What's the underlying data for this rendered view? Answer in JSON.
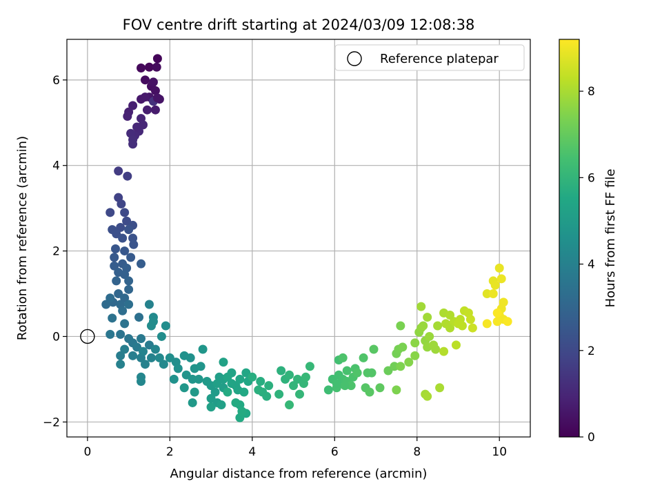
{
  "chart_data": {
    "type": "scatter",
    "title": "FOV centre drift starting at 2024/03/09 12:08:38",
    "xlabel": "Angular distance from reference (arcmin)",
    "ylabel": "Rotation from reference (arcmin)",
    "xlim": [
      -0.5,
      10.75
    ],
    "ylim": [
      -2.35,
      6.95
    ],
    "xticks": [
      0,
      2,
      4,
      6,
      8,
      10
    ],
    "yticks": [
      -2,
      0,
      2,
      4,
      6
    ],
    "grid": true,
    "legend": {
      "placement": "top-right",
      "entries": [
        "Reference platepar"
      ]
    },
    "reference_point": {
      "label": "Reference platepar",
      "x": 0,
      "y": 0
    },
    "colorbar": {
      "label": "Hours from first FF file",
      "colormap": "viridis",
      "range": [
        0,
        9.2
      ],
      "ticks": [
        0,
        2,
        4,
        6,
        8
      ]
    },
    "colormap_stops": [
      "#440154",
      "#482475",
      "#414487",
      "#355f8d",
      "#2a788e",
      "#21918c",
      "#22a884",
      "#44bf70",
      "#7ad151",
      "#bddf26",
      "#fde725"
    ],
    "series": [
      {
        "points": [
          [
            1.7,
            6.5,
            0.1
          ],
          [
            1.5,
            6.3,
            0.15
          ],
          [
            1.3,
            6.28,
            0.2
          ],
          [
            1.68,
            6.3,
            0.25
          ],
          [
            1.4,
            6.0,
            0.3
          ],
          [
            1.55,
            5.85,
            0.35
          ],
          [
            1.65,
            5.75,
            0.4
          ],
          [
            1.6,
            5.95,
            0.45
          ],
          [
            1.75,
            5.55,
            0.5
          ],
          [
            1.5,
            5.6,
            0.55
          ],
          [
            1.3,
            5.55,
            0.6
          ],
          [
            1.4,
            5.6,
            0.65
          ],
          [
            1.65,
            5.3,
            0.7
          ],
          [
            1.45,
            5.3,
            0.75
          ],
          [
            1.1,
            5.4,
            0.8
          ],
          [
            1.0,
            5.25,
            0.85
          ],
          [
            0.97,
            5.15,
            0.9
          ],
          [
            1.3,
            5.1,
            0.95
          ],
          [
            1.35,
            4.95,
            1.0
          ],
          [
            1.25,
            4.8,
            1.05
          ],
          [
            1.15,
            4.7,
            1.1
          ],
          [
            1.05,
            4.75,
            1.15
          ],
          [
            1.1,
            4.6,
            1.2
          ],
          [
            1.1,
            4.5,
            1.25
          ],
          [
            1.6,
            5.5,
            1.3
          ],
          [
            1.7,
            5.58,
            0.5
          ],
          [
            1.2,
            4.9,
            1.0
          ],
          [
            0.75,
            3.87,
            1.6
          ],
          [
            0.97,
            3.75,
            1.7
          ],
          [
            0.75,
            3.25,
            1.8
          ],
          [
            0.82,
            3.1,
            1.9
          ],
          [
            0.55,
            2.9,
            2.0
          ],
          [
            0.9,
            2.9,
            2.05
          ],
          [
            0.95,
            2.7,
            2.1
          ],
          [
            0.8,
            2.55,
            2.15
          ],
          [
            0.6,
            2.5,
            2.2
          ],
          [
            1.1,
            2.6,
            2.2
          ],
          [
            0.7,
            2.4,
            2.25
          ],
          [
            0.85,
            2.3,
            2.3
          ],
          [
            1.1,
            2.3,
            2.3
          ],
          [
            1.0,
            2.5,
            2.35
          ],
          [
            1.12,
            2.15,
            2.4
          ],
          [
            0.68,
            2.05,
            2.45
          ],
          [
            0.9,
            2.0,
            2.5
          ],
          [
            0.65,
            1.85,
            2.55
          ],
          [
            1.05,
            1.85,
            2.6
          ],
          [
            0.85,
            1.7,
            2.65
          ],
          [
            0.65,
            1.65,
            2.7
          ],
          [
            1.3,
            1.7,
            2.7
          ],
          [
            0.95,
            1.6,
            2.75
          ],
          [
            0.75,
            1.5,
            2.8
          ],
          [
            0.9,
            1.45,
            2.85
          ],
          [
            0.7,
            1.3,
            2.9
          ],
          [
            1.0,
            1.3,
            2.95
          ],
          [
            1.0,
            1.1,
            3.0
          ],
          [
            0.75,
            1.0,
            3.05
          ],
          [
            0.62,
            0.8,
            3.1
          ],
          [
            0.9,
            0.9,
            3.1
          ],
          [
            0.8,
            0.75,
            3.15
          ],
          [
            0.45,
            0.75,
            3.2
          ],
          [
            0.55,
            0.9,
            3.25
          ],
          [
            0.85,
            0.6,
            3.3
          ],
          [
            1.0,
            0.75,
            3.35
          ],
          [
            1.25,
            0.45,
            3.4
          ],
          [
            0.6,
            0.43,
            3.45
          ],
          [
            0.9,
            0.3,
            3.5
          ],
          [
            0.8,
            0.05,
            3.55
          ],
          [
            0.55,
            0.05,
            3.6
          ],
          [
            1.0,
            -0.05,
            3.6
          ],
          [
            1.1,
            -0.15,
            3.65
          ],
          [
            1.3,
            -0.05,
            3.7
          ],
          [
            1.2,
            -0.25,
            3.75
          ],
          [
            1.5,
            -0.2,
            3.8
          ],
          [
            0.8,
            -0.45,
            3.85
          ],
          [
            0.9,
            -0.3,
            3.9
          ],
          [
            1.1,
            -0.45,
            3.9
          ],
          [
            1.3,
            -0.5,
            3.95
          ],
          [
            1.4,
            -0.65,
            4.0
          ],
          [
            0.8,
            -0.65,
            4.0
          ],
          [
            1.5,
            0.75,
            4.05
          ],
          [
            1.55,
            -0.5,
            4.1
          ],
          [
            1.35,
            -0.35,
            4.1
          ],
          [
            1.65,
            -0.3,
            4.15
          ],
          [
            1.3,
            -0.95,
            4.2
          ],
          [
            1.3,
            -1.05,
            4.25
          ],
          [
            1.85,
            -0.65,
            4.3
          ],
          [
            1.75,
            -0.5,
            4.3
          ],
          [
            1.6,
            0.45,
            4.35
          ],
          [
            1.55,
            0.25,
            4.4
          ],
          [
            1.6,
            0.35,
            4.4
          ],
          [
            1.9,
            0.25,
            4.45
          ],
          [
            1.8,
            0.0,
            4.45
          ],
          [
            2.0,
            -0.5,
            4.5
          ],
          [
            2.15,
            -0.6,
            4.5
          ],
          [
            2.2,
            -0.75,
            4.55
          ],
          [
            2.35,
            -0.45,
            4.6
          ],
          [
            2.5,
            -0.5,
            4.6
          ],
          [
            2.1,
            -1.0,
            4.65
          ],
          [
            2.6,
            -0.75,
            4.7
          ],
          [
            2.4,
            -0.9,
            4.7
          ],
          [
            2.55,
            -1.0,
            4.75
          ],
          [
            2.75,
            -0.7,
            4.75
          ],
          [
            2.8,
            -0.3,
            4.8
          ],
          [
            2.7,
            -1.0,
            4.8
          ],
          [
            2.35,
            -1.2,
            4.85
          ],
          [
            2.6,
            -1.3,
            4.9
          ],
          [
            2.55,
            -1.55,
            4.9
          ],
          [
            2.9,
            -1.05,
            4.95
          ],
          [
            3.0,
            -1.15,
            5.0
          ],
          [
            3.1,
            -1.3,
            5.0
          ],
          [
            3.0,
            -1.45,
            5.05
          ],
          [
            3.15,
            -1.55,
            5.05
          ],
          [
            3.3,
            -1.2,
            5.1
          ],
          [
            3.2,
            -0.95,
            5.1
          ],
          [
            3.3,
            -1.0,
            5.15
          ],
          [
            3.15,
            -1.1,
            5.15
          ],
          [
            3.0,
            -1.65,
            5.2
          ],
          [
            3.25,
            -1.6,
            5.2
          ],
          [
            3.3,
            -0.6,
            5.25
          ],
          [
            3.5,
            -0.85,
            5.3
          ],
          [
            3.6,
            -1.15,
            5.3
          ],
          [
            3.65,
            -1.25,
            5.35
          ],
          [
            3.5,
            -1.1,
            5.35
          ],
          [
            3.4,
            -0.95,
            5.4
          ],
          [
            3.7,
            -1.0,
            5.4
          ],
          [
            3.85,
            -0.85,
            5.45
          ],
          [
            3.9,
            -1.05,
            5.45
          ],
          [
            3.8,
            -1.3,
            5.5
          ],
          [
            3.85,
            -1.8,
            5.5
          ],
          [
            3.7,
            -1.9,
            5.55
          ],
          [
            3.7,
            -1.6,
            5.55
          ],
          [
            3.6,
            -1.55,
            5.6
          ],
          [
            3.75,
            -1.75,
            5.6
          ],
          [
            3.4,
            -1.3,
            5.6
          ],
          [
            4.2,
            -1.05,
            5.7
          ],
          [
            4.0,
            -0.95,
            5.7
          ],
          [
            4.25,
            -1.3,
            5.75
          ],
          [
            4.35,
            -1.4,
            5.75
          ],
          [
            4.15,
            -1.25,
            5.8
          ],
          [
            4.4,
            -1.15,
            5.8
          ],
          [
            4.7,
            -0.8,
            5.85
          ],
          [
            4.65,
            -1.35,
            5.9
          ],
          [
            4.8,
            -1.0,
            5.9
          ],
          [
            4.9,
            -0.9,
            5.95
          ],
          [
            5.0,
            -1.15,
            6.0
          ],
          [
            5.1,
            -1.0,
            6.0
          ],
          [
            5.15,
            -1.35,
            6.05
          ],
          [
            5.25,
            -1.1,
            6.05
          ],
          [
            5.3,
            -0.95,
            6.1
          ],
          [
            5.4,
            -0.7,
            6.1
          ],
          [
            4.9,
            -1.6,
            6.1
          ],
          [
            5.85,
            -1.25,
            6.3
          ],
          [
            5.95,
            -1.0,
            6.35
          ],
          [
            6.1,
            -0.9,
            6.4
          ],
          [
            6.1,
            -0.55,
            6.4
          ],
          [
            6.05,
            -1.2,
            6.45
          ],
          [
            6.2,
            -1.0,
            6.45
          ],
          [
            6.3,
            -0.8,
            6.5
          ],
          [
            6.3,
            -1.05,
            6.5
          ],
          [
            6.45,
            -0.95,
            6.55
          ],
          [
            6.5,
            -0.75,
            6.55
          ],
          [
            6.4,
            -1.15,
            6.6
          ],
          [
            6.2,
            -0.5,
            6.6
          ],
          [
            6.55,
            -0.85,
            6.65
          ],
          [
            6.7,
            -0.5,
            6.65
          ],
          [
            6.8,
            -0.85,
            6.7
          ],
          [
            6.9,
            -0.85,
            6.7
          ],
          [
            6.75,
            -1.2,
            6.75
          ],
          [
            6.85,
            -1.3,
            6.8
          ],
          [
            6.95,
            -0.3,
            6.8
          ],
          [
            6.05,
            -1.1,
            6.4
          ],
          [
            6.25,
            -1.15,
            6.5
          ],
          [
            7.1,
            -1.2,
            6.9
          ],
          [
            7.3,
            -0.8,
            7.1
          ],
          [
            7.45,
            -0.7,
            7.2
          ],
          [
            7.5,
            -0.4,
            7.25
          ],
          [
            7.55,
            -0.3,
            7.3
          ],
          [
            7.6,
            0.25,
            7.35
          ],
          [
            7.65,
            -0.25,
            7.35
          ],
          [
            7.6,
            -0.7,
            7.4
          ],
          [
            7.5,
            -1.25,
            7.4
          ],
          [
            7.8,
            -0.6,
            7.5
          ],
          [
            7.95,
            -0.45,
            7.55
          ],
          [
            7.95,
            -0.15,
            7.6
          ],
          [
            8.05,
            0.1,
            7.65
          ],
          [
            8.1,
            0.2,
            7.7
          ],
          [
            8.2,
            -0.1,
            7.7
          ],
          [
            8.25,
            -0.25,
            7.75
          ],
          [
            8.15,
            0.25,
            7.8
          ],
          [
            8.3,
            0.0,
            7.8
          ],
          [
            8.4,
            -0.2,
            7.85
          ],
          [
            8.45,
            -0.3,
            7.85
          ],
          [
            8.1,
            0.7,
            7.9
          ],
          [
            8.25,
            0.45,
            7.9
          ],
          [
            8.5,
            0.25,
            7.95
          ],
          [
            8.2,
            -1.35,
            7.95
          ],
          [
            8.25,
            -1.4,
            8.0
          ],
          [
            8.55,
            -1.2,
            8.0
          ],
          [
            8.65,
            0.55,
            8.05
          ],
          [
            8.7,
            0.3,
            8.1
          ],
          [
            8.8,
            0.2,
            8.1
          ],
          [
            8.65,
            -0.35,
            8.15
          ],
          [
            8.9,
            0.35,
            8.2
          ],
          [
            9.05,
            0.4,
            8.25
          ],
          [
            8.95,
            -0.2,
            8.25
          ],
          [
            9.1,
            0.25,
            8.3
          ],
          [
            9.15,
            0.6,
            8.35
          ],
          [
            9.25,
            0.55,
            8.4
          ],
          [
            9.3,
            0.4,
            8.45
          ],
          [
            9.35,
            0.2,
            8.5
          ],
          [
            9.0,
            0.3,
            8.3
          ],
          [
            8.8,
            0.5,
            8.1
          ],
          [
            9.7,
            1.0,
            8.8
          ],
          [
            9.85,
            1.3,
            8.85
          ],
          [
            9.9,
            1.2,
            8.9
          ],
          [
            10.0,
            1.6,
            8.9
          ],
          [
            10.05,
            1.35,
            8.95
          ],
          [
            9.85,
            1.0,
            8.95
          ],
          [
            10.1,
            0.8,
            9.0
          ],
          [
            10.05,
            0.65,
            9.0
          ],
          [
            10.0,
            0.5,
            9.05
          ],
          [
            10.1,
            0.4,
            9.05
          ],
          [
            9.7,
            0.3,
            9.1
          ],
          [
            9.95,
            0.35,
            9.1
          ],
          [
            10.2,
            0.35,
            9.15
          ],
          [
            9.95,
            0.55,
            9.15
          ]
        ]
      }
    ]
  }
}
